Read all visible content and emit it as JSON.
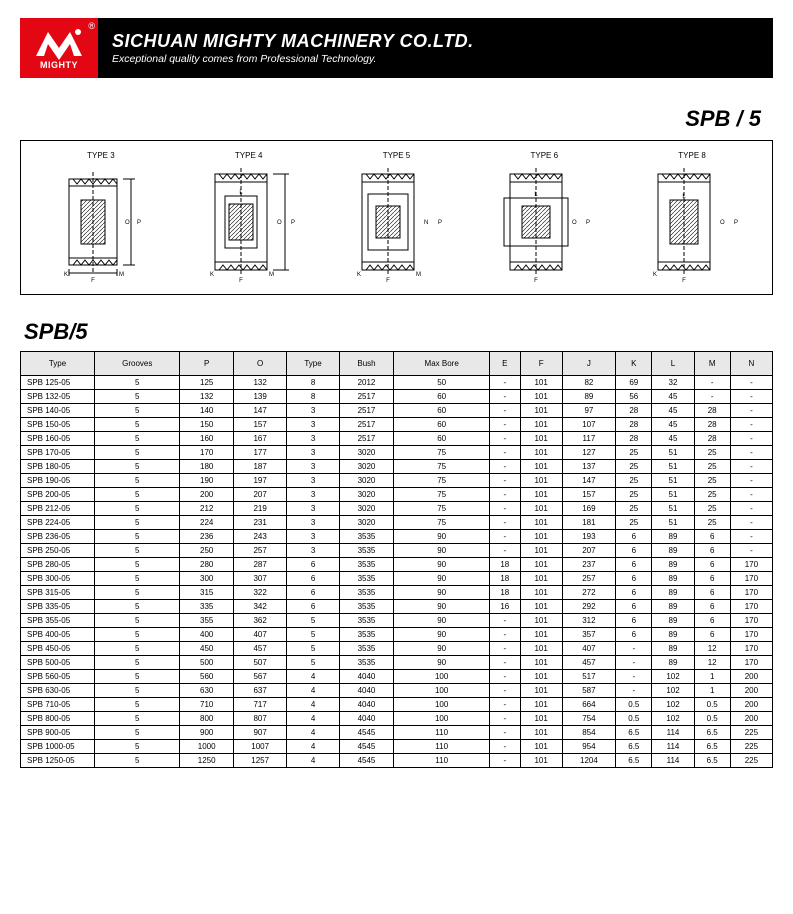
{
  "header": {
    "logo_text": "MIGHTY",
    "reg": "®",
    "company": "SICHUAN MIGHTY MACHINERY CO.LTD.",
    "tagline": "Exceptional quality comes from Professional Technology."
  },
  "section_title": "SPB / 5",
  "diagram_labels": [
    "TYPE 3",
    "TYPE 4",
    "TYPE 5",
    "TYPE 6",
    "TYPE 8"
  ],
  "table_title": "SPB/5",
  "table": {
    "columns": [
      "Type",
      "Grooves",
      "P",
      "O",
      "Type",
      "Bush",
      "Max Bore",
      "E",
      "F",
      "J",
      "K",
      "L",
      "M",
      "N"
    ],
    "rows": [
      [
        "SPB 125-05",
        "5",
        "125",
        "132",
        "8",
        "2012",
        "50",
        "-",
        "101",
        "82",
        "69",
        "32",
        "-",
        "-"
      ],
      [
        "SPB 132-05",
        "5",
        "132",
        "139",
        "8",
        "2517",
        "60",
        "-",
        "101",
        "89",
        "56",
        "45",
        "-",
        "-"
      ],
      [
        "SPB 140-05",
        "5",
        "140",
        "147",
        "3",
        "2517",
        "60",
        "-",
        "101",
        "97",
        "28",
        "45",
        "28",
        "-"
      ],
      [
        "SPB 150-05",
        "5",
        "150",
        "157",
        "3",
        "2517",
        "60",
        "-",
        "101",
        "107",
        "28",
        "45",
        "28",
        "-"
      ],
      [
        "SPB 160-05",
        "5",
        "160",
        "167",
        "3",
        "2517",
        "60",
        "-",
        "101",
        "117",
        "28",
        "45",
        "28",
        "-"
      ],
      [
        "SPB 170-05",
        "5",
        "170",
        "177",
        "3",
        "3020",
        "75",
        "-",
        "101",
        "127",
        "25",
        "51",
        "25",
        "-"
      ],
      [
        "SPB 180-05",
        "5",
        "180",
        "187",
        "3",
        "3020",
        "75",
        "-",
        "101",
        "137",
        "25",
        "51",
        "25",
        "-"
      ],
      [
        "SPB 190-05",
        "5",
        "190",
        "197",
        "3",
        "3020",
        "75",
        "-",
        "101",
        "147",
        "25",
        "51",
        "25",
        "-"
      ],
      [
        "SPB 200-05",
        "5",
        "200",
        "207",
        "3",
        "3020",
        "75",
        "-",
        "101",
        "157",
        "25",
        "51",
        "25",
        "-"
      ],
      [
        "SPB 212-05",
        "5",
        "212",
        "219",
        "3",
        "3020",
        "75",
        "-",
        "101",
        "169",
        "25",
        "51",
        "25",
        "-"
      ],
      [
        "SPB 224-05",
        "5",
        "224",
        "231",
        "3",
        "3020",
        "75",
        "-",
        "101",
        "181",
        "25",
        "51",
        "25",
        "-"
      ],
      [
        "SPB 236-05",
        "5",
        "236",
        "243",
        "3",
        "3535",
        "90",
        "-",
        "101",
        "193",
        "6",
        "89",
        "6",
        "-"
      ],
      [
        "SPB 250-05",
        "5",
        "250",
        "257",
        "3",
        "3535",
        "90",
        "-",
        "101",
        "207",
        "6",
        "89",
        "6",
        "-"
      ],
      [
        "SPB 280-05",
        "5",
        "280",
        "287",
        "6",
        "3535",
        "90",
        "18",
        "101",
        "237",
        "6",
        "89",
        "6",
        "170"
      ],
      [
        "SPB 300-05",
        "5",
        "300",
        "307",
        "6",
        "3535",
        "90",
        "18",
        "101",
        "257",
        "6",
        "89",
        "6",
        "170"
      ],
      [
        "SPB 315-05",
        "5",
        "315",
        "322",
        "6",
        "3535",
        "90",
        "18",
        "101",
        "272",
        "6",
        "89",
        "6",
        "170"
      ],
      [
        "SPB 335-05",
        "5",
        "335",
        "342",
        "6",
        "3535",
        "90",
        "16",
        "101",
        "292",
        "6",
        "89",
        "6",
        "170"
      ],
      [
        "SPB 355-05",
        "5",
        "355",
        "362",
        "5",
        "3535",
        "90",
        "-",
        "101",
        "312",
        "6",
        "89",
        "6",
        "170"
      ],
      [
        "SPB 400-05",
        "5",
        "400",
        "407",
        "5",
        "3535",
        "90",
        "-",
        "101",
        "357",
        "6",
        "89",
        "6",
        "170"
      ],
      [
        "SPB 450-05",
        "5",
        "450",
        "457",
        "5",
        "3535",
        "90",
        "-",
        "101",
        "407",
        "-",
        "89",
        "12",
        "170"
      ],
      [
        "SPB 500-05",
        "5",
        "500",
        "507",
        "5",
        "3535",
        "90",
        "-",
        "101",
        "457",
        "-",
        "89",
        "12",
        "170"
      ],
      [
        "SPB 560-05",
        "5",
        "560",
        "567",
        "4",
        "4040",
        "100",
        "-",
        "101",
        "517",
        "-",
        "102",
        "1",
        "200"
      ],
      [
        "SPB 630-05",
        "5",
        "630",
        "637",
        "4",
        "4040",
        "100",
        "-",
        "101",
        "587",
        "-",
        "102",
        "1",
        "200"
      ],
      [
        "SPB 710-05",
        "5",
        "710",
        "717",
        "4",
        "4040",
        "100",
        "-",
        "101",
        "664",
        "0.5",
        "102",
        "0.5",
        "200"
      ],
      [
        "SPB 800-05",
        "5",
        "800",
        "807",
        "4",
        "4040",
        "100",
        "-",
        "101",
        "754",
        "0.5",
        "102",
        "0.5",
        "200"
      ],
      [
        "SPB 900-05",
        "5",
        "900",
        "907",
        "4",
        "4545",
        "110",
        "-",
        "101",
        "854",
        "6.5",
        "114",
        "6.5",
        "225"
      ],
      [
        "SPB 1000-05",
        "5",
        "1000",
        "1007",
        "4",
        "4545",
        "110",
        "-",
        "101",
        "954",
        "6.5",
        "114",
        "6.5",
        "225"
      ],
      [
        "SPB 1250-05",
        "5",
        "1250",
        "1257",
        "4",
        "4545",
        "110",
        "-",
        "101",
        "1204",
        "6.5",
        "114",
        "6.5",
        "225"
      ]
    ]
  },
  "colors": {
    "brand_red": "#e30613",
    "header_bg": "#000000",
    "table_header_bg": "#e8e8e8"
  }
}
